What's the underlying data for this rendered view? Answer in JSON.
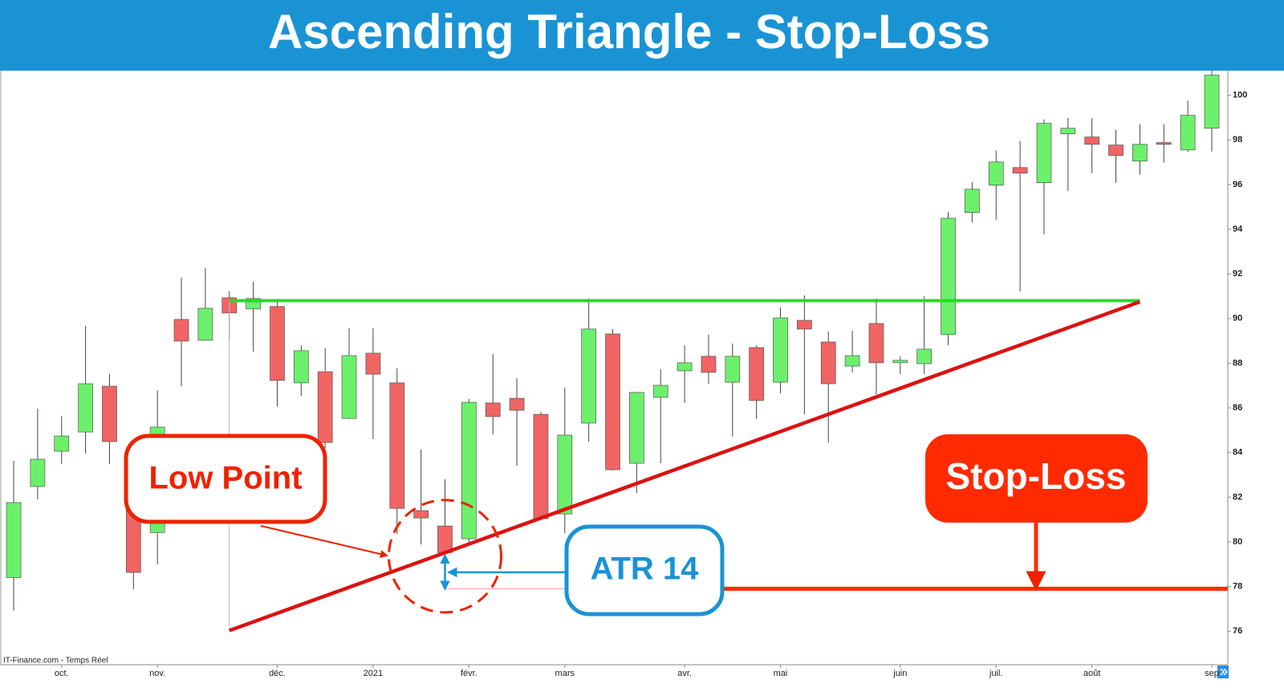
{
  "chart_data": {
    "type": "candlestick",
    "title": "Ascending Triangle - Stop-Loss",
    "source": "IT-Finance.com - Temps Réel",
    "up_color": "#6cf06c",
    "down_color": "#f06464",
    "open": [
      78.4,
      82.48,
      84.06,
      84.92,
      86.97,
      83.2,
      80.42,
      89.96,
      89.03,
      90.93,
      90.43,
      90.54,
      87.12,
      87.62,
      85.53,
      88.45,
      87.12,
      81.4,
      80.71,
      80.14,
      86.22,
      86.43,
      85.71,
      81.25,
      85.32,
      89.31,
      83.52,
      86.47,
      87.66,
      88.31,
      87.15,
      88.7,
      87.15,
      89.92,
      88.95,
      87.87,
      89.78,
      88.02,
      87.98,
      89.28,
      94.75,
      95.97,
      96.76,
      96.08,
      98.27,
      98.13,
      97.77,
      97.05,
      97.88,
      97.55,
      98.52
    ],
    "high": [
      83.63,
      85.97,
      85.64,
      89.67,
      87.51,
      83.4,
      86.79,
      91.83,
      92.26,
      91.22,
      91.65,
      90.75,
      88.81,
      88.67,
      89.56,
      89.56,
      87.77,
      84.13,
      82.8,
      86.4,
      88.41,
      87.33,
      85.82,
      86.9,
      90.9,
      89.53,
      86.72,
      87.73,
      88.81,
      89.28,
      88.88,
      88.81,
      90.5,
      91.04,
      89.42,
      89.46,
      90.9,
      88.3,
      91.0,
      94.78,
      96.11,
      97.52,
      97.95,
      98.92,
      98.99,
      98.96,
      98.45,
      98.7,
      98.7,
      99.75,
      101.1
    ],
    "low": [
      76.93,
      81.9,
      83.48,
      83.95,
      83.48,
      77.87,
      78.99,
      86.97,
      89.0,
      89.03,
      88.52,
      86.07,
      86.54,
      84.2,
      85.5,
      84.6,
      80.35,
      79.88,
      79.38,
      79.99,
      84.81,
      83.41,
      80.96,
      80.39,
      84.49,
      83.2,
      82.19,
      83.52,
      86.22,
      87.08,
      84.71,
      85.5,
      86.65,
      85.71,
      84.45,
      87.59,
      86.61,
      87.51,
      87.51,
      88.81,
      94.31,
      94.42,
      91.22,
      93.77,
      95.72,
      96.51,
      96.08,
      96.44,
      96.98,
      97.45,
      97.48
    ],
    "close": [
      81.76,
      83.7,
      84.74,
      87.08,
      84.49,
      78.63,
      85.14,
      88.99,
      90.46,
      90.25,
      90.9,
      87.23,
      88.56,
      84.45,
      88.34,
      87.51,
      81.5,
      81.07,
      79.52,
      86.25,
      85.61,
      85.89,
      81.04,
      84.78,
      89.53,
      83.23,
      86.69,
      87.01,
      88.02,
      87.59,
      88.31,
      86.33,
      90.03,
      89.53,
      87.08,
      88.34,
      88.02,
      88.13,
      88.63,
      94.49,
      95.79,
      97.01,
      96.51,
      98.74,
      98.52,
      97.8,
      97.3,
      97.8,
      97.8,
      99.1,
      100.9
    ],
    "xlim": [
      -0.57,
      50.67
    ],
    "xticks": [
      {
        "value": 2,
        "label": "oct."
      },
      {
        "value": 6,
        "label": "nov."
      },
      {
        "value": 11,
        "label": "déc."
      },
      {
        "value": 15,
        "label": "2021"
      },
      {
        "value": 19,
        "label": "févr."
      },
      {
        "value": 23,
        "label": "mars"
      },
      {
        "value": 28,
        "label": "avr."
      },
      {
        "value": 32,
        "label": "mai"
      },
      {
        "value": 37,
        "label": "juin"
      },
      {
        "value": 41,
        "label": "juil."
      },
      {
        "value": 45,
        "label": "août"
      },
      {
        "value": 50,
        "label": "sep"
      }
    ],
    "ylim": [
      74.5,
      101.1
    ],
    "yticks": [
      76,
      78,
      80,
      82,
      84,
      86,
      88,
      90,
      92,
      94,
      96,
      98,
      100
    ],
    "resistance": {
      "level": 90.8,
      "x": [
        9,
        47
      ],
      "color": "#22dd22"
    },
    "trendline": {
      "x": [
        9,
        47
      ],
      "y": [
        76.03,
        90.75
      ],
      "color": "#dd1111"
    },
    "stop_loss": {
      "label": "Stop-Loss",
      "level": 77.9,
      "x": [
        27,
        50.67
      ],
      "color": "#ff2a00"
    },
    "low_point": {
      "label": "Low Point",
      "index": 18
    },
    "atr": {
      "label": "ATR 14"
    }
  }
}
